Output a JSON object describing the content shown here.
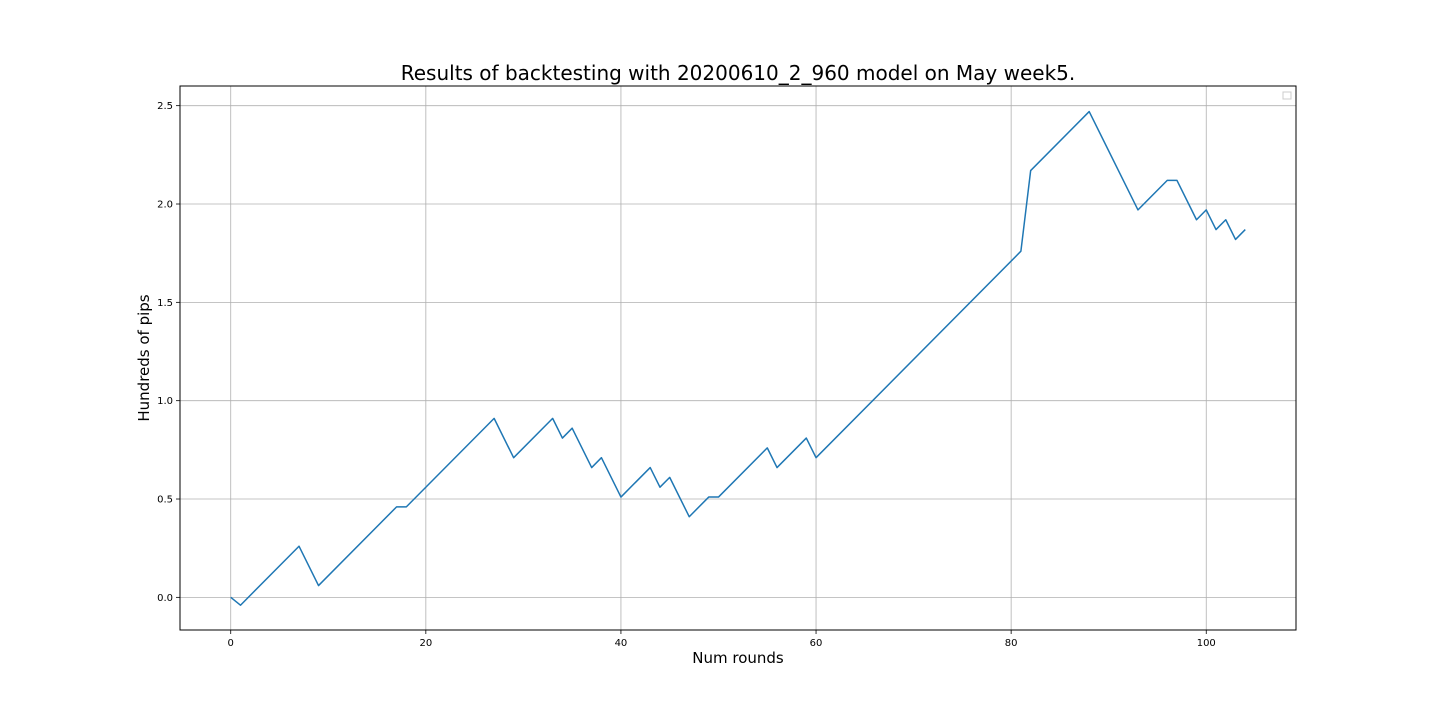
{
  "chart_data": {
    "type": "line",
    "title": "Results of backtesting with 20200610_2_960 model on May week5.",
    "xlabel": "Num rounds",
    "ylabel": "Hundreds of pips",
    "xlim": [
      -5.2,
      109.2
    ],
    "ylim": [
      -0.166,
      2.6
    ],
    "xticks": [
      0,
      20,
      40,
      60,
      80,
      100
    ],
    "yticks": [
      0.0,
      0.5,
      1.0,
      1.5,
      2.0,
      2.5
    ],
    "xtick_labels": [
      "0",
      "20",
      "40",
      "60",
      "80",
      "100"
    ],
    "ytick_labels": [
      "0.0",
      "0.5",
      "1.0",
      "1.5",
      "2.0",
      "2.5"
    ],
    "grid": true,
    "legend": "top-right (empty)",
    "series": [
      {
        "color": "#1f77b4",
        "x": [
          0,
          1,
          7,
          9,
          17,
          18,
          27,
          29,
          33,
          34,
          35,
          37,
          38,
          40,
          43,
          44,
          45,
          47,
          49,
          50,
          55,
          56,
          59,
          60,
          81,
          82,
          88,
          93,
          96,
          97,
          99,
          100,
          101,
          102,
          103,
          104
        ],
        "y": [
          0.0,
          -0.04,
          0.26,
          0.06,
          0.46,
          0.46,
          0.91,
          0.71,
          0.91,
          0.81,
          0.86,
          0.66,
          0.71,
          0.51,
          0.66,
          0.56,
          0.61,
          0.41,
          0.51,
          0.51,
          0.76,
          0.66,
          0.81,
          0.71,
          1.76,
          2.17,
          2.47,
          1.97,
          2.12,
          2.12,
          1.92,
          1.97,
          1.87,
          1.92,
          1.82,
          1.87
        ]
      }
    ]
  }
}
